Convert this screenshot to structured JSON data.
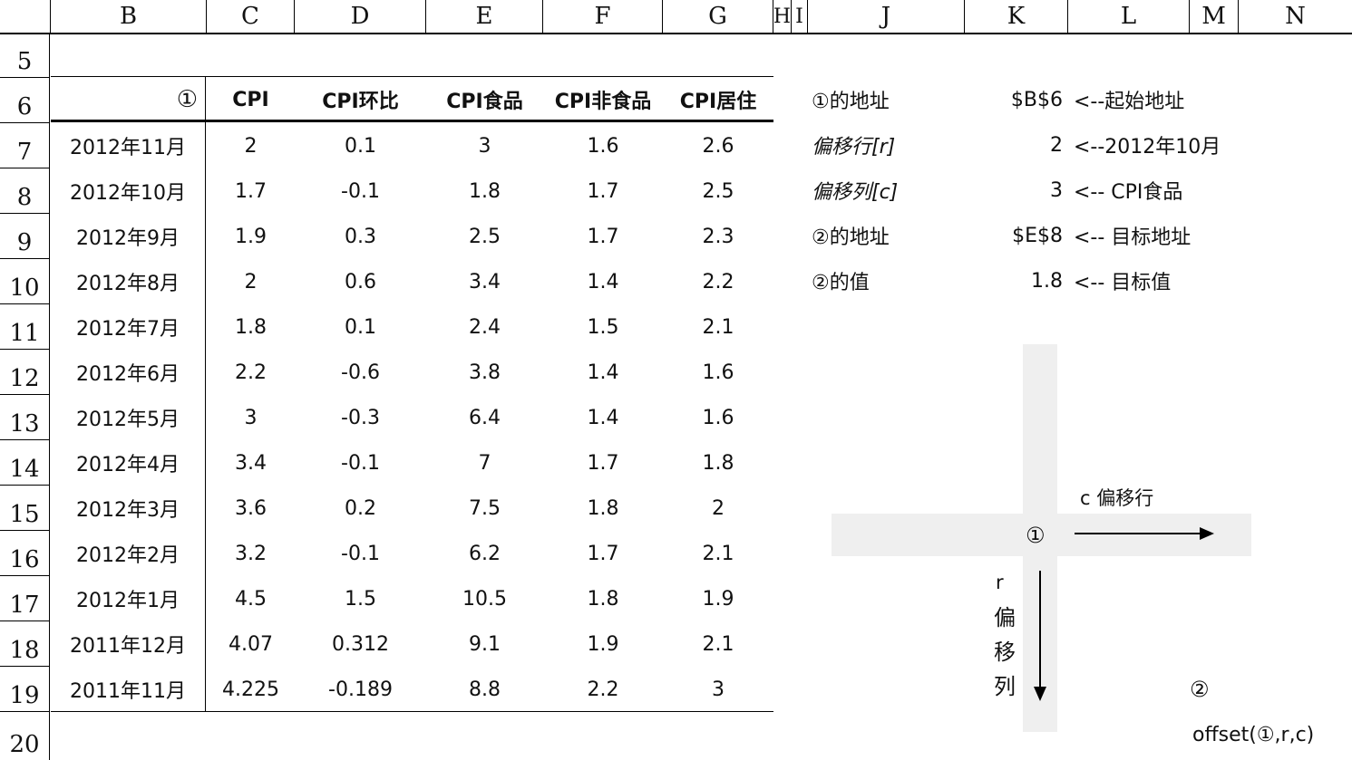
{
  "column_headers": [
    "B",
    "C",
    "D",
    "E",
    "F",
    "G",
    "H",
    "I",
    "J",
    "K",
    "L",
    "M",
    "N"
  ],
  "row_headers": [
    "5",
    "6",
    "7",
    "8",
    "9",
    "10",
    "11",
    "12",
    "13",
    "14",
    "15",
    "16",
    "17",
    "18",
    "19",
    "20"
  ],
  "table": {
    "start_marker": "①",
    "headers": [
      "CPI",
      "CPI环比",
      "CPI食品",
      "CPI非食品",
      "CPI居住"
    ],
    "rows": [
      {
        "date": "2012年11月",
        "values": [
          "2",
          "0.1",
          "3",
          "1.6",
          "2.6"
        ]
      },
      {
        "date": "2012年10月",
        "values": [
          "1.7",
          "-0.1",
          "1.8",
          "1.7",
          "2.5"
        ]
      },
      {
        "date": "2012年9月",
        "values": [
          "1.9",
          "0.3",
          "2.5",
          "1.7",
          "2.3"
        ]
      },
      {
        "date": "2012年8月",
        "values": [
          "2",
          "0.6",
          "3.4",
          "1.4",
          "2.2"
        ]
      },
      {
        "date": "2012年7月",
        "values": [
          "1.8",
          "0.1",
          "2.4",
          "1.5",
          "2.1"
        ]
      },
      {
        "date": "2012年6月",
        "values": [
          "2.2",
          "-0.6",
          "3.8",
          "1.4",
          "1.6"
        ]
      },
      {
        "date": "2012年5月",
        "values": [
          "3",
          "-0.3",
          "6.4",
          "1.4",
          "1.6"
        ]
      },
      {
        "date": "2012年4月",
        "values": [
          "3.4",
          "-0.1",
          "7",
          "1.7",
          "1.8"
        ]
      },
      {
        "date": "2012年3月",
        "values": [
          "3.6",
          "0.2",
          "7.5",
          "1.8",
          "2"
        ]
      },
      {
        "date": "2012年2月",
        "values": [
          "3.2",
          "-0.1",
          "6.2",
          "1.7",
          "2.1"
        ]
      },
      {
        "date": "2012年1月",
        "values": [
          "4.5",
          "1.5",
          "10.5",
          "1.8",
          "1.9"
        ]
      },
      {
        "date": "2011年12月",
        "values": [
          "4.07",
          "0.312",
          "9.1",
          "1.9",
          "2.1"
        ]
      },
      {
        "date": "2011年11月",
        "values": [
          "4.225",
          "-0.189",
          "8.8",
          "2.2",
          "3"
        ]
      }
    ]
  },
  "info": [
    {
      "label": "①的地址",
      "value": "$B$6",
      "note": "<--起始地址",
      "italic": false
    },
    {
      "label": "偏移行[r]",
      "value": "2",
      "note": "<--2012年10月",
      "italic": true
    },
    {
      "label": "偏移列[c]",
      "value": "3",
      "note": "<-- CPI食品",
      "italic": true
    },
    {
      "label": "②的地址",
      "value": "$E$8",
      "note": "<-- 目标地址",
      "italic": false
    },
    {
      "label": "②的值",
      "value": "1.8",
      "note": "<-- 目标值",
      "italic": false
    }
  ],
  "diagram": {
    "origin": "①",
    "target": "②",
    "col_offset_label": "c 偏移行",
    "row_offset_letter": "r",
    "row_offset_chars": [
      "偏",
      "移",
      "列"
    ],
    "formula": "offset(①,r,c)"
  }
}
